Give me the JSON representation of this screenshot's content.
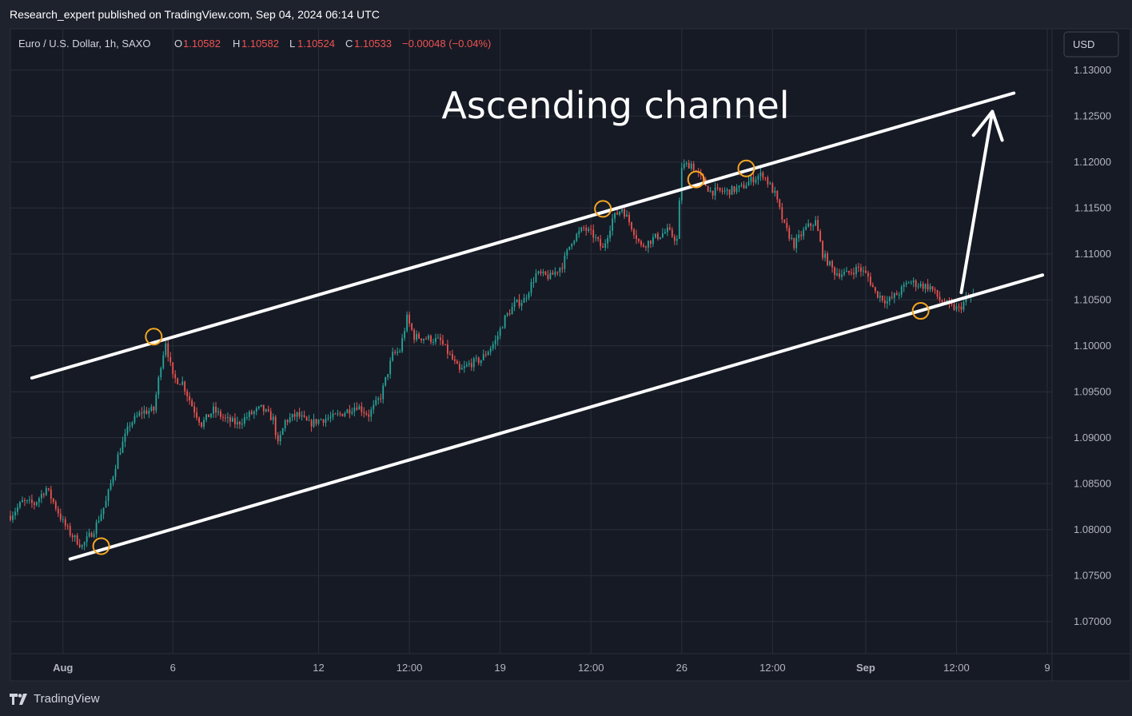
{
  "header": {
    "publisher": "Research_expert published on TradingView.com, Sep 04, 2024 06:14 UTC"
  },
  "legend": {
    "symbol": "Euro / U.S. Dollar, 1h, SAXO",
    "o_label": "O",
    "o_value": "1.10582",
    "h_label": "H",
    "h_value": "1.10582",
    "l_label": "L",
    "l_value": "1.10524",
    "c_label": "C",
    "c_value": "1.10533",
    "change": "−0.00048 (−0.04%)"
  },
  "currency_button": "USD",
  "footer": {
    "brand": "TradingView"
  },
  "colors": {
    "background": "#1e222d",
    "plot": "#161a25",
    "up": "#26a69a",
    "down": "#ef5350",
    "lines": "#ffffff",
    "markers": "#f5a623",
    "legend_values": "#ef5350"
  },
  "chart_data": {
    "type": "candlestick",
    "title": "Ascending channel",
    "y_axis": {
      "ticks": [
        "1.13000",
        "1.12500",
        "1.12000",
        "1.11500",
        "1.11000",
        "1.10500",
        "1.10000",
        "1.09500",
        "1.09000",
        "1.08500",
        "1.08000",
        "1.07500",
        "1.07000"
      ],
      "range": [
        1.0665,
        1.1345
      ]
    },
    "x_axis": {
      "ticks": [
        "Aug",
        "6",
        "12",
        "12:00",
        "19",
        "12:00",
        "26",
        "12:00",
        "Sep",
        "12:00",
        "9"
      ],
      "tick_index": [
        22,
        68,
        129,
        167,
        205,
        243,
        281,
        319,
        358,
        396,
        434
      ],
      "range_index": [
        0,
        436
      ]
    },
    "price_path": [
      [
        0,
        1.0815
      ],
      [
        5,
        1.083
      ],
      [
        10,
        1.0828
      ],
      [
        15,
        1.0845
      ],
      [
        18,
        1.083
      ],
      [
        22,
        1.0808
      ],
      [
        25,
        1.0796
      ],
      [
        30,
        1.0782
      ],
      [
        35,
        1.08
      ],
      [
        40,
        1.083
      ],
      [
        45,
        1.088
      ],
      [
        50,
        1.0915
      ],
      [
        55,
        1.0928
      ],
      [
        60,
        1.093
      ],
      [
        63,
        1.098
      ],
      [
        65,
        1.1005
      ],
      [
        68,
        1.0965
      ],
      [
        72,
        1.096
      ],
      [
        76,
        1.0935
      ],
      [
        80,
        1.0915
      ],
      [
        85,
        1.093
      ],
      [
        90,
        1.092
      ],
      [
        95,
        1.0915
      ],
      [
        100,
        1.0925
      ],
      [
        105,
        1.0932
      ],
      [
        110,
        1.092
      ],
      [
        112,
        1.0892
      ],
      [
        115,
        1.0918
      ],
      [
        120,
        1.0925
      ],
      [
        125,
        1.0915
      ],
      [
        130,
        1.092
      ],
      [
        135,
        1.0922
      ],
      [
        140,
        1.0928
      ],
      [
        145,
        1.0935
      ],
      [
        150,
        1.0925
      ],
      [
        155,
        1.0945
      ],
      [
        160,
        1.099
      ],
      [
        163,
        1.0995
      ],
      [
        166,
        1.103
      ],
      [
        169,
        1.101
      ],
      [
        175,
        1.1008
      ],
      [
        180,
        1.1005
      ],
      [
        185,
        1.0985
      ],
      [
        188,
        1.0972
      ],
      [
        192,
        1.098
      ],
      [
        197,
        1.0985
      ],
      [
        203,
        1.1005
      ],
      [
        207,
        1.103
      ],
      [
        211,
        1.1045
      ],
      [
        215,
        1.105
      ],
      [
        220,
        1.1078
      ],
      [
        226,
        1.1075
      ],
      [
        231,
        1.1088
      ],
      [
        235,
        1.1115
      ],
      [
        240,
        1.1128
      ],
      [
        244,
        1.112
      ],
      [
        248,
        1.1105
      ],
      [
        252,
        1.1138
      ],
      [
        256,
        1.115
      ],
      [
        260,
        1.113
      ],
      [
        264,
        1.1108
      ],
      [
        270,
        1.1118
      ],
      [
        275,
        1.1125
      ],
      [
        279,
        1.1115
      ],
      [
        281,
        1.1195
      ],
      [
        285,
        1.1198
      ],
      [
        289,
        1.1182
      ],
      [
        293,
        1.1168
      ],
      [
        300,
        1.1168
      ],
      [
        306,
        1.1172
      ],
      [
        311,
        1.1182
      ],
      [
        315,
        1.1187
      ],
      [
        320,
        1.1165
      ],
      [
        324,
        1.113
      ],
      [
        328,
        1.111
      ],
      [
        333,
        1.1128
      ],
      [
        337,
        1.1135
      ],
      [
        340,
        1.11
      ],
      [
        345,
        1.108
      ],
      [
        350,
        1.1078
      ],
      [
        355,
        1.1085
      ],
      [
        359,
        1.1075
      ],
      [
        362,
        1.1058
      ],
      [
        367,
        1.1048
      ],
      [
        372,
        1.1058
      ],
      [
        376,
        1.107
      ],
      [
        381,
        1.1066
      ],
      [
        385,
        1.1064
      ],
      [
        389,
        1.105
      ],
      [
        393,
        1.1043
      ],
      [
        397,
        1.104
      ],
      [
        400,
        1.105
      ],
      [
        403,
        1.1055
      ]
    ],
    "annotations": {
      "channel_upper": [
        [
          9,
          1.0965
        ],
        [
          420,
          1.1275
        ]
      ],
      "channel_lower": [
        [
          25,
          1.0768
        ],
        [
          432,
          1.1077
        ]
      ],
      "arrow": [
        [
          398,
          1.1058
        ],
        [
          411,
          1.1255
        ]
      ],
      "touch_points": [
        [
          60,
          1.101
        ],
        [
          38,
          1.0782
        ],
        [
          248,
          1.1149
        ],
        [
          287,
          1.1181
        ],
        [
          308,
          1.1193
        ],
        [
          381,
          1.1038
        ]
      ]
    }
  }
}
